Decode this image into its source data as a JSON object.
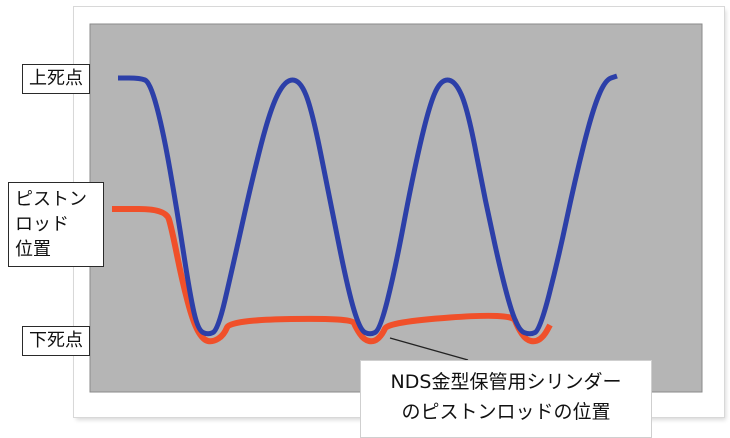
{
  "chart_data": {
    "type": "line",
    "y_levels": [
      "上死点",
      "下死点"
    ],
    "series": [
      {
        "color": "#2c3fa8",
        "values": []
      },
      {
        "color": "#f0502a",
        "values": []
      }
    ]
  },
  "labels": {
    "top_dead_center": "上死点",
    "piston_rod_position": "ピストン\nロッド\n位置",
    "bottom_dead_center": "下死点",
    "callout": "NDS金型保管用シリンダー\nのピストンロッドの位置"
  },
  "colors": {
    "plot_bg": "#b5b5b5",
    "blue": "#2c3fa8",
    "orange": "#f0502a"
  }
}
